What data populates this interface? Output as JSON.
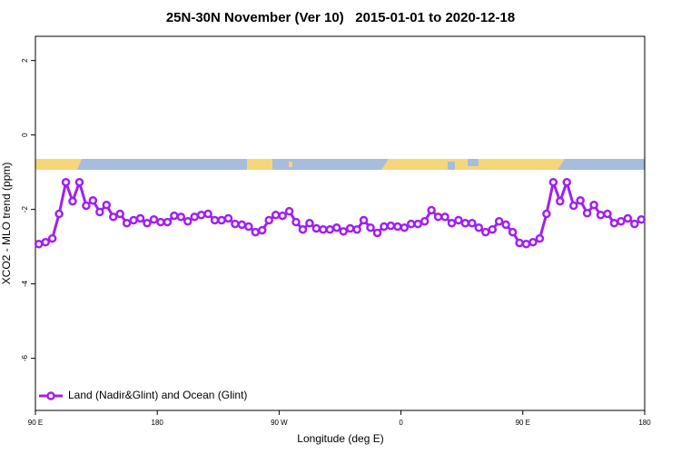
{
  "chart_data": {
    "type": "line",
    "title": "25N-30N November (Ver 10)   2015-01-01 to 2020-12-18",
    "x_label": "Longitude (deg E)",
    "y_label": "XCO2 - MLO trend (ppm)",
    "xlim": [
      90,
      540
    ],
    "ylim": [
      -7.4,
      2.65
    ],
    "xticks": [
      {
        "value": 90,
        "label": "90 E"
      },
      180,
      {
        "value": 270,
        "label": "90 W"
      },
      {
        "value": 360,
        "label": "0"
      },
      {
        "value": 450,
        "label": "90 E"
      },
      {
        "value": 540,
        "label": "180"
      }
    ],
    "yticks": [
      2,
      0,
      -2,
      -4,
      -6
    ],
    "grid": false,
    "legend": "bottomleft",
    "x": [
      92.5,
      97.5,
      102.5,
      107.5,
      112.5,
      117.5,
      122.5,
      127.5,
      132.5,
      137.5,
      142.5,
      147.5,
      152.5,
      157.5,
      162.5,
      167.5,
      172.5,
      177.5,
      182.5,
      187.5,
      192.5,
      197.5,
      202.5,
      207.5,
      212.5,
      217.5,
      222.5,
      227.5,
      232.5,
      237.5,
      242.5,
      247.5,
      252.5,
      257.5,
      262.5,
      267.5,
      272.5,
      277.5,
      282.5,
      287.5,
      292.5,
      297.5,
      302.5,
      307.5,
      312.5,
      317.5,
      322.5,
      327.5,
      332.5,
      337.5,
      342.5,
      347.5,
      352.5,
      357.5,
      362.5,
      367.5,
      372.5,
      377.5,
      382.5,
      387.5,
      392.5,
      397.5,
      402.5,
      407.5,
      412.5,
      417.5,
      422.5,
      427.5,
      432.5,
      437.5,
      442.5,
      447.5,
      452.5,
      457.5,
      462.5,
      467.5,
      472.5,
      477.5,
      482.5,
      487.5,
      492.5,
      497.5,
      502.5,
      507.5,
      512.5,
      517.5,
      522.5,
      527.5,
      532.5,
      537.5
    ],
    "series": [
      {
        "name": "Land (Nadir&Glint) and Ocean (Glint)",
        "color": "#a020f0",
        "values": [
          -2.93,
          -2.88,
          -2.78,
          -2.12,
          -1.27,
          -1.78,
          -1.27,
          -1.9,
          -1.76,
          -2.07,
          -1.88,
          -2.2,
          -2.12,
          -2.37,
          -2.29,
          -2.24,
          -2.37,
          -2.27,
          -2.34,
          -2.34,
          -2.17,
          -2.2,
          -2.32,
          -2.2,
          -2.15,
          -2.12,
          -2.29,
          -2.29,
          -2.24,
          -2.39,
          -2.41,
          -2.46,
          -2.61,
          -2.56,
          -2.29,
          -2.15,
          -2.17,
          -2.05,
          -2.34,
          -2.54,
          -2.37,
          -2.51,
          -2.54,
          -2.54,
          -2.49,
          -2.59,
          -2.51,
          -2.54,
          -2.29,
          -2.49,
          -2.63,
          -2.46,
          -2.44,
          -2.46,
          -2.49,
          -2.39,
          -2.39,
          -2.32,
          -2.02,
          -2.2,
          -2.2,
          -2.37,
          -2.29,
          -2.37,
          -2.37,
          -2.49,
          -2.61,
          -2.54,
          -2.32,
          -2.41,
          -2.61,
          -2.9,
          -2.93,
          -2.88,
          -2.78,
          -2.12,
          -1.27,
          -1.78,
          -1.27,
          -1.9,
          -1.76,
          -2.1,
          -1.88,
          -2.15,
          -2.12,
          -2.37,
          -2.32,
          -2.24,
          -2.39,
          -2.27
        ]
      }
    ]
  }
}
